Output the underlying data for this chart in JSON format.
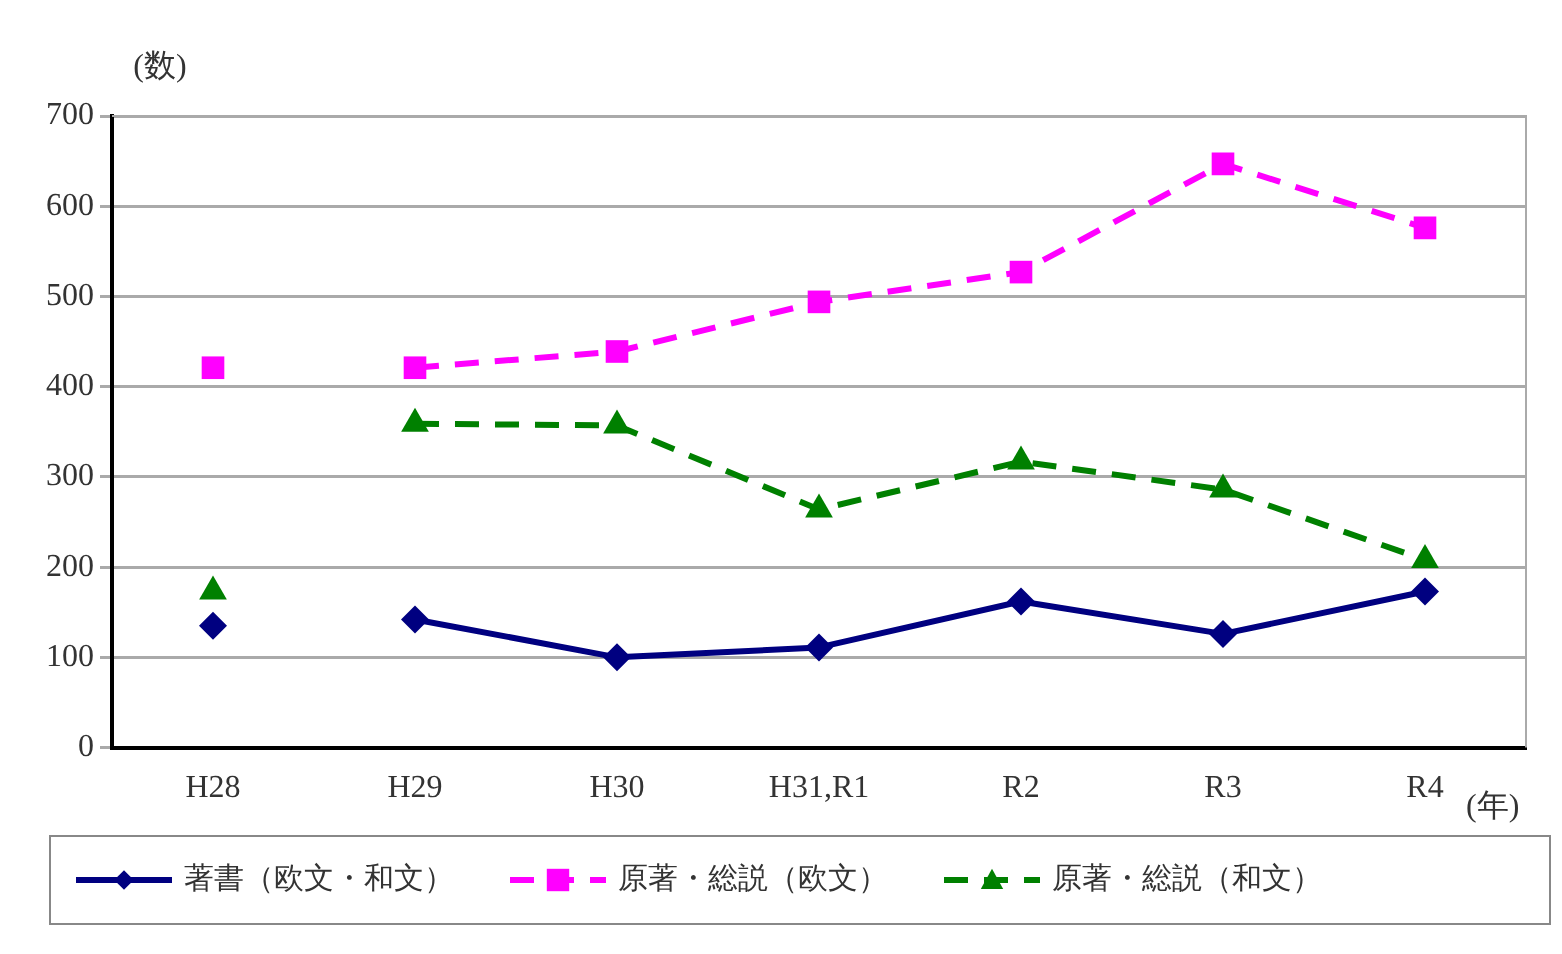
{
  "chart_data": {
    "type": "line",
    "ylabel": "(数)",
    "xlabel": "(年)",
    "categories": [
      "H28",
      "H29",
      "H30",
      "H31,R1",
      "R2",
      "R3",
      "R4"
    ],
    "ylim": [
      0,
      700
    ],
    "yticks": [
      0,
      100,
      200,
      300,
      400,
      500,
      600,
      700
    ],
    "grid": "y",
    "legend": "bottom",
    "series": [
      {
        "name": "著書（欧文・和文）",
        "color": "#000080",
        "marker": "diamond",
        "line_style": "solid",
        "values": [
          null,
          142,
          100,
          111,
          162,
          126,
          173
        ]
      },
      {
        "name": "原著・総説（欧文）",
        "color": "#ff00ff",
        "marker": "square",
        "line_style": "dashed",
        "values": [
          null,
          421,
          439,
          494,
          527,
          647,
          576
        ]
      },
      {
        "name": "原著・総説（和文）",
        "color": "#008000",
        "marker": "triangle",
        "line_style": "dashed",
        "values": [
          null,
          359,
          357,
          264,
          317,
          286,
          208
        ]
      },
      {
        "type": "scatter",
        "x": [
          "H28"
        ],
        "color": "#000080",
        "marker": "diamond",
        "values": [
          135
        ]
      },
      {
        "type": "scatter",
        "x": [
          "H28"
        ],
        "color": "#ff00ff",
        "marker": "square",
        "values": [
          421
        ]
      },
      {
        "type": "scatter",
        "x": [
          "H28"
        ],
        "color": "#008000",
        "marker": "triangle",
        "values": [
          173
        ]
      }
    ]
  }
}
